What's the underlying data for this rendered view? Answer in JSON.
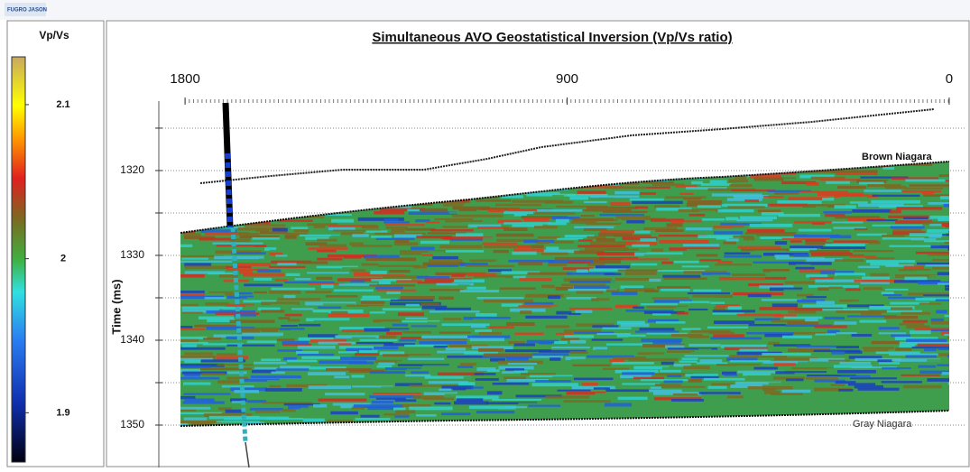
{
  "logo": "FUGRO JASON",
  "chart_data": {
    "type": "seismic",
    "title": "Simultaneous AVO Geostatistical Inversion (Vp/Vs ratio)",
    "xticks": [
      1800,
      900,
      0
    ],
    "xlim": [
      1864,
      -49
    ],
    "ylabel": "Time (ms)",
    "yticks": [
      1320,
      1330,
      1340,
      1350
    ],
    "ylim": [
      1311.6,
      1355
    ],
    "grid": true,
    "colorbar": {
      "title": "Vp/Vs",
      "ticks": [
        2.1,
        2,
        1.9
      ],
      "lim": [
        2.131,
        1.868
      ]
    },
    "annotations": [
      "Brown Niagara",
      "Gray Niagara"
    ]
  }
}
